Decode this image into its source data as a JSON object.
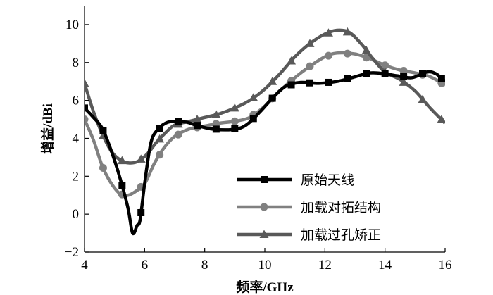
{
  "chart_data": {
    "type": "line",
    "title": "",
    "xlabel": "频率/GHz",
    "ylabel": "增益/dBi",
    "xlim": [
      4,
      16
    ],
    "ylim": [
      -2,
      11
    ],
    "xticks": [
      4,
      6,
      8,
      10,
      12,
      14,
      16
    ],
    "yticks": [
      -2,
      0,
      2,
      4,
      6,
      8,
      10
    ],
    "grid": false,
    "legend_position": "bottom-right",
    "series": [
      {
        "name": "原始天线",
        "color": "#000000",
        "marker": "square",
        "points": [
          [
            4.0,
            5.6
          ],
          [
            4.3,
            5.1
          ],
          [
            4.6,
            4.5
          ],
          [
            4.9,
            3.3
          ],
          [
            5.2,
            1.8
          ],
          [
            5.45,
            0.3
          ],
          [
            5.6,
            -1.0
          ],
          [
            5.75,
            -0.6
          ],
          [
            5.85,
            -0.3
          ],
          [
            6.0,
            1.6
          ],
          [
            6.2,
            3.7
          ],
          [
            6.4,
            4.4
          ],
          [
            6.7,
            4.8
          ],
          [
            7.0,
            4.9
          ],
          [
            7.4,
            4.85
          ],
          [
            7.7,
            4.7
          ],
          [
            8.2,
            4.5
          ],
          [
            8.8,
            4.45
          ],
          [
            9.2,
            4.55
          ],
          [
            9.5,
            4.85
          ],
          [
            9.9,
            5.5
          ],
          [
            10.3,
            6.2
          ],
          [
            10.7,
            6.75
          ],
          [
            11.2,
            6.95
          ],
          [
            11.8,
            6.9
          ],
          [
            12.4,
            7.0
          ],
          [
            12.9,
            7.2
          ],
          [
            13.5,
            7.45
          ],
          [
            14.0,
            7.4
          ],
          [
            14.4,
            7.3
          ],
          [
            14.9,
            7.2
          ],
          [
            15.4,
            7.5
          ],
          [
            15.7,
            7.4
          ],
          [
            16.0,
            7.0
          ]
        ],
        "marker_x": [
          4.0,
          4.62,
          5.25,
          5.88,
          6.5,
          7.12,
          7.75,
          8.38,
          9.0,
          9.62,
          10.25,
          10.88,
          11.5,
          12.12,
          12.75,
          13.38,
          14.0,
          14.62,
          15.25,
          15.88
        ]
      },
      {
        "name": "加载对拓结构",
        "color": "#808080",
        "marker": "circle",
        "points": [
          [
            4.0,
            5.0
          ],
          [
            4.3,
            3.9
          ],
          [
            4.6,
            2.5
          ],
          [
            4.9,
            1.6
          ],
          [
            5.2,
            1.05
          ],
          [
            5.45,
            1.0
          ],
          [
            5.7,
            1.2
          ],
          [
            6.0,
            1.6
          ],
          [
            6.3,
            2.6
          ],
          [
            6.6,
            3.4
          ],
          [
            7.0,
            4.1
          ],
          [
            7.5,
            4.5
          ],
          [
            8.0,
            4.65
          ],
          [
            8.5,
            4.8
          ],
          [
            9.0,
            4.9
          ],
          [
            9.5,
            5.1
          ],
          [
            10.0,
            5.7
          ],
          [
            10.5,
            6.5
          ],
          [
            11.0,
            7.2
          ],
          [
            11.5,
            7.8
          ],
          [
            12.0,
            8.3
          ],
          [
            12.4,
            8.5
          ],
          [
            13.0,
            8.45
          ],
          [
            13.5,
            8.2
          ],
          [
            14.0,
            7.85
          ],
          [
            14.5,
            7.6
          ],
          [
            15.0,
            7.45
          ],
          [
            15.5,
            7.25
          ],
          [
            16.0,
            6.8
          ]
        ],
        "marker_x": [
          4.0,
          4.62,
          5.25,
          5.88,
          6.5,
          7.12,
          7.75,
          8.38,
          9.0,
          9.62,
          10.25,
          10.88,
          11.5,
          12.12,
          12.75,
          13.38,
          14.0,
          14.62,
          15.25,
          15.88
        ]
      },
      {
        "name": "加载过孔矫正",
        "color": "#595959",
        "marker": "triangle",
        "points": [
          [
            4.0,
            6.9
          ],
          [
            4.3,
            5.4
          ],
          [
            4.6,
            4.2
          ],
          [
            4.9,
            3.3
          ],
          [
            5.2,
            2.85
          ],
          [
            5.5,
            2.7
          ],
          [
            5.8,
            2.8
          ],
          [
            6.1,
            3.2
          ],
          [
            6.4,
            3.8
          ],
          [
            6.7,
            4.3
          ],
          [
            7.0,
            4.7
          ],
          [
            7.5,
            4.9
          ],
          [
            8.0,
            5.1
          ],
          [
            8.5,
            5.3
          ],
          [
            9.0,
            5.6
          ],
          [
            9.5,
            6.0
          ],
          [
            10.0,
            6.6
          ],
          [
            10.5,
            7.4
          ],
          [
            11.0,
            8.3
          ],
          [
            11.5,
            9.0
          ],
          [
            12.0,
            9.5
          ],
          [
            12.4,
            9.7
          ],
          [
            12.8,
            9.6
          ],
          [
            13.2,
            9.0
          ],
          [
            13.6,
            8.2
          ],
          [
            14.0,
            7.5
          ],
          [
            14.5,
            7.1
          ],
          [
            15.0,
            6.5
          ],
          [
            15.5,
            5.6
          ],
          [
            16.0,
            4.8
          ]
        ],
        "marker_x": [
          4.0,
          4.62,
          5.25,
          5.88,
          6.5,
          7.12,
          7.75,
          8.38,
          9.0,
          9.62,
          10.25,
          10.88,
          11.5,
          12.12,
          12.75,
          13.38,
          14.0,
          14.62,
          15.25,
          15.88
        ]
      }
    ]
  }
}
